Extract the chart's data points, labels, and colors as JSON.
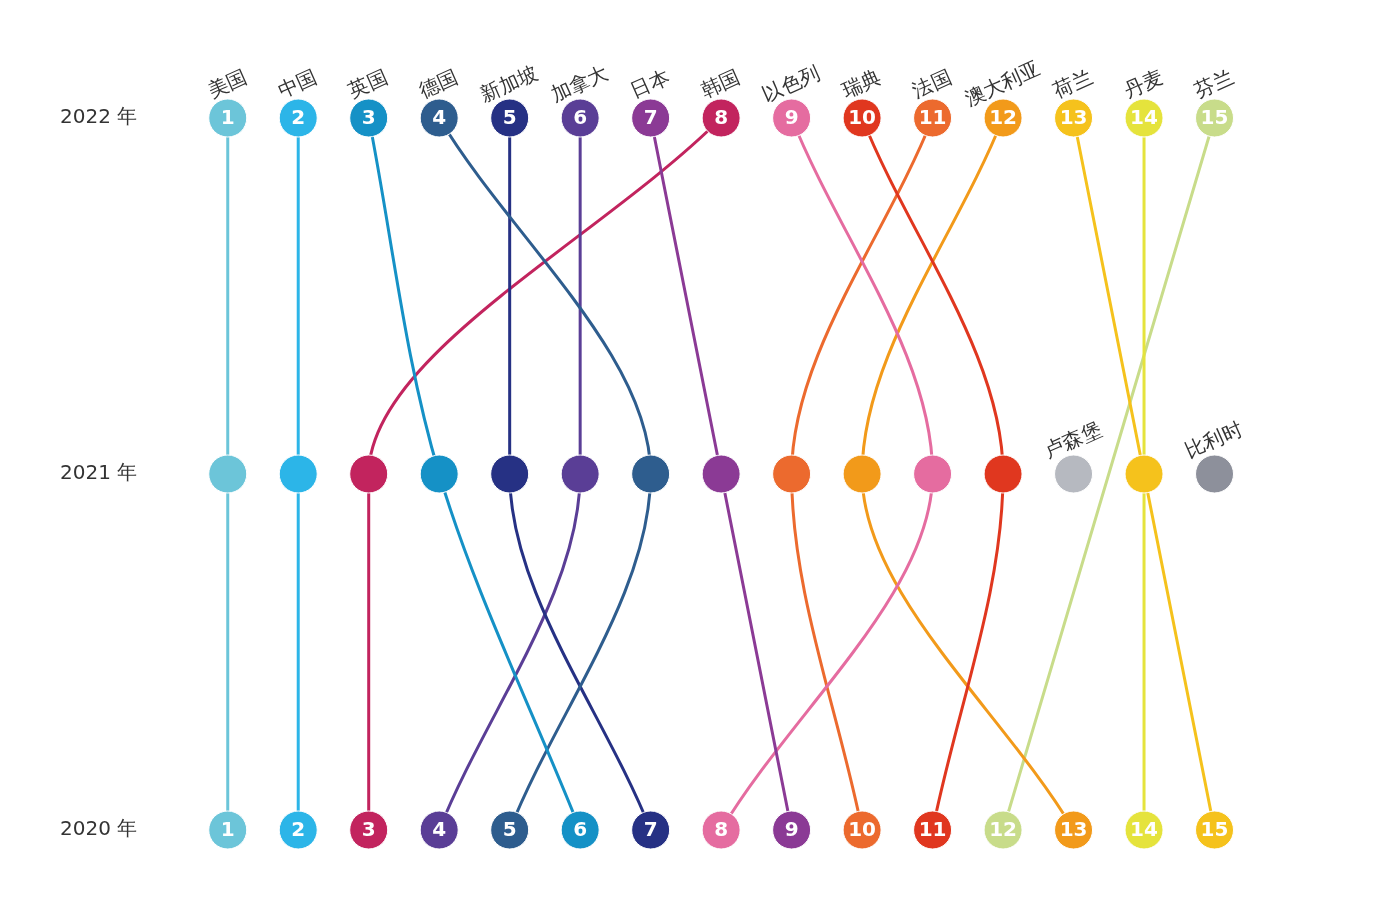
{
  "chart_data": {
    "type": "line",
    "orientation": "horizontal",
    "categories": [
      "2022 年",
      "2021 年",
      "2020 年"
    ],
    "tick_labels": "y",
    "grid": false,
    "legend": false,
    "marker": "circle",
    "line_style": "solid",
    "series": [
      {
        "name": "美国",
        "color": "#6cc5d9",
        "values": [
          1,
          1,
          1
        ],
        "value_labels": [
          "1",
          null,
          "1"
        ]
      },
      {
        "name": "中国",
        "color": "#2cb5e8",
        "values": [
          2,
          2,
          2
        ],
        "value_labels": [
          "2",
          null,
          "2"
        ]
      },
      {
        "name": "英国",
        "color": "#1591c6",
        "values": [
          3,
          4,
          6
        ],
        "value_labels": [
          "3",
          null,
          "6"
        ]
      },
      {
        "name": "德国",
        "color": "#2e5d8e",
        "values": [
          4,
          7,
          5
        ],
        "value_labels": [
          "4",
          null,
          "5"
        ]
      },
      {
        "name": "新加坡",
        "color": "#263184",
        "values": [
          5,
          5,
          7
        ],
        "value_labels": [
          "5",
          null,
          "7"
        ]
      },
      {
        "name": "加拿大",
        "color": "#5a3e96",
        "values": [
          6,
          6,
          4
        ],
        "value_labels": [
          "6",
          null,
          "4"
        ]
      },
      {
        "name": "日本",
        "color": "#8b3a95",
        "values": [
          7,
          8,
          9
        ],
        "value_labels": [
          "7",
          null,
          "9"
        ]
      },
      {
        "name": "韩国",
        "color": "#c2245e",
        "values": [
          8,
          3,
          3
        ],
        "value_labels": [
          "8",
          null,
          "3"
        ]
      },
      {
        "name": "以色列",
        "color": "#e56ca0",
        "values": [
          9,
          11,
          8
        ],
        "value_labels": [
          "9",
          null,
          "8"
        ]
      },
      {
        "name": "瑞典",
        "color": "#e0371f",
        "values": [
          10,
          12,
          11
        ],
        "value_labels": [
          "10",
          null,
          "11"
        ]
      },
      {
        "name": "法国",
        "color": "#ec6a2e",
        "values": [
          11,
          9,
          10
        ],
        "value_labels": [
          "11",
          null,
          "10"
        ]
      },
      {
        "name": "澳大利亚",
        "color": "#f29a1a",
        "values": [
          12,
          10,
          13
        ],
        "value_labels": [
          "12",
          null,
          "13"
        ]
      },
      {
        "name": "荷兰",
        "color": "#f5c21c",
        "values": [
          13,
          14,
          15
        ],
        "value_labels": [
          "13",
          null,
          "15"
        ]
      },
      {
        "name": "丹麦",
        "color": "#e5e33c",
        "values": [
          14,
          null,
          14
        ],
        "value_labels": [
          "14",
          null,
          "14"
        ]
      },
      {
        "name": "芬兰",
        "color": "#c8dc8a",
        "values": [
          15,
          null,
          12
        ],
        "value_labels": [
          "15",
          null,
          "12"
        ]
      },
      {
        "name": "卢森堡",
        "color": "#b6b9c0",
        "values": [
          null,
          13,
          null
        ],
        "value_labels": [
          null,
          null,
          null
        ]
      },
      {
        "name": "比利时",
        "color": "#8d909b",
        "values": [
          null,
          15,
          null
        ],
        "value_labels": [
          null,
          null,
          null
        ]
      }
    ]
  }
}
